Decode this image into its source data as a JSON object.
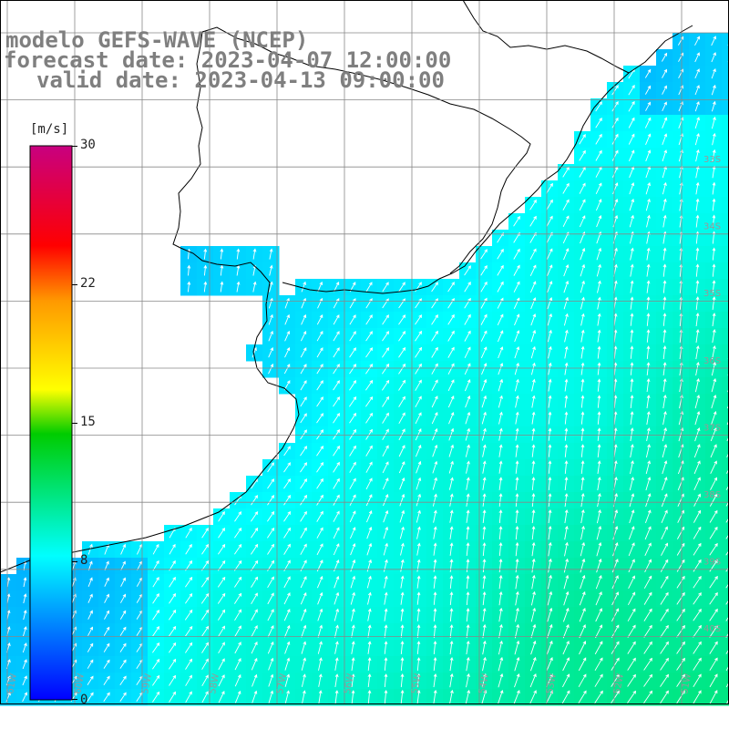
{
  "title": {
    "line1": "modelo GEFS-WAVE (NCEP)",
    "line2": "forecast date: 2023-04-07 12:00:00",
    "line3": "valid date: 2023-04-13 09:00:00"
  },
  "colorbar": {
    "unit": "[m/s]",
    "ticks": [
      "30",
      "22",
      "15",
      "8",
      "0"
    ],
    "min": 0,
    "max": 30,
    "stops": [
      "#0000ff",
      "#00ffff",
      "#00cc00",
      "#ffff00",
      "#ff9900",
      "#ff0000",
      "#c80080"
    ]
  },
  "map": {
    "lat_labels": [
      "33S",
      "34S",
      "35S",
      "36S",
      "37S",
      "38S",
      "39S",
      "40S"
    ],
    "lon_labels": [
      "61W",
      "60W",
      "59W",
      "58W",
      "57W",
      "56W",
      "55W",
      "54W",
      "53W",
      "52W",
      "51W"
    ],
    "land_color": "#ffffff",
    "grid_color": "#888888"
  },
  "wind_field": {
    "variable": "wind speed",
    "units": "m/s",
    "direction": "predominantly from south-west",
    "range_min": 3,
    "range_max": 11
  }
}
